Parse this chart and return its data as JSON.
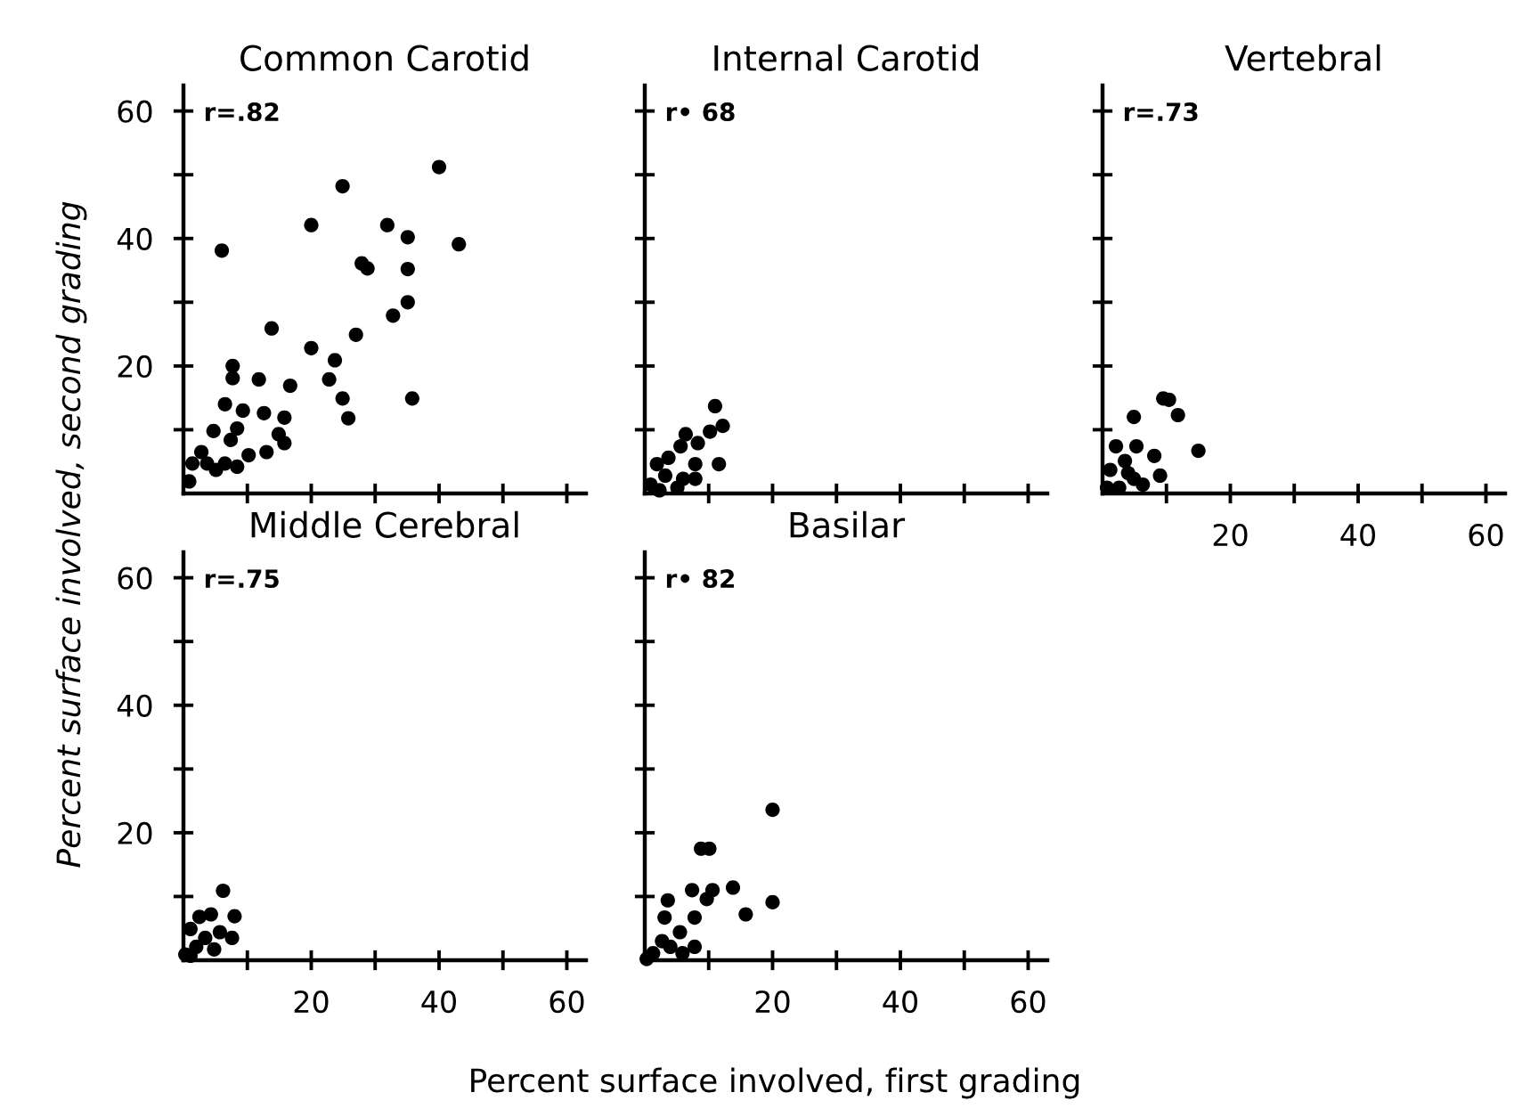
{
  "chart_data": [
    {
      "type": "scatter",
      "title": "Common Carotid",
      "ylabel": "Percent surface involved, second grading",
      "annotations": [
        "r=.82"
      ],
      "marker": "circle",
      "tick_labels": "y",
      "xlim": [
        0,
        63
      ],
      "ylim": [
        0,
        64
      ],
      "xticks": [
        {
          "value": 10,
          "label": null
        },
        20,
        {
          "value": 30,
          "label": null
        },
        40,
        {
          "value": 50,
          "label": null
        },
        60
      ],
      "yticks": [
        {
          "value": 10,
          "label": null
        },
        20,
        {
          "value": 30,
          "label": null
        },
        40,
        {
          "value": 50,
          "label": null
        },
        60
      ],
      "series": [
        {
          "color": "#000000",
          "x": [
            40,
            24.9,
            20,
            31.9,
            35.1,
            43.1,
            6,
            27.9,
            28.8,
            35.1,
            35.1,
            32.8,
            27,
            13.8,
            20,
            23.7,
            22.8,
            24.9,
            25.8,
            35.8,
            16.7,
            11.8,
            7.7,
            7.7,
            4.7,
            6.5,
            9.3,
            12.6,
            15.8,
            8.4,
            14.9,
            15.8,
            13,
            10.2,
            7.4,
            6.5,
            8.4,
            2.8,
            1.4,
            0.9,
            3.7,
            5.1
          ],
          "values": [
            51.2,
            48.2,
            42.1,
            42.1,
            40.2,
            39.1,
            38.1,
            36.1,
            35.3,
            35.2,
            30,
            27.9,
            24.9,
            25.9,
            22.8,
            20.9,
            17.9,
            14.9,
            11.8,
            14.9,
            16.9,
            17.9,
            20,
            18.1,
            9.8,
            14,
            13,
            12.6,
            11.9,
            10.2,
            9.3,
            7.9,
            6.5,
            6,
            8.4,
            4.7,
            4.2,
            6.5,
            4.7,
            1.9,
            4.7,
            3.7
          ]
        }
      ]
    },
    {
      "type": "scatter",
      "title": "Internal Carotid",
      "annotations": [
        "r• 68"
      ],
      "marker": "circle",
      "tick_labels": false,
      "xlim": [
        0,
        63
      ],
      "ylim": [
        0,
        64
      ],
      "xticks": [
        {
          "value": 10,
          "label": null
        },
        20,
        {
          "value": 30,
          "label": null
        },
        40,
        {
          "value": 50,
          "label": null
        },
        60
      ],
      "yticks": [
        {
          "value": 10,
          "label": null
        },
        20,
        {
          "value": 30,
          "label": null
        },
        40,
        {
          "value": 50,
          "label": null
        },
        60
      ],
      "series": [
        {
          "color": "#000000",
          "x": [
            11,
            12.2,
            10.2,
            8.3,
            6.4,
            5.6,
            11.6,
            7.9,
            3.7,
            1.9,
            3.2,
            6,
            0.9,
            2.3,
            7.9,
            5.1
          ],
          "values": [
            13.7,
            10.6,
            9.7,
            7.9,
            9.3,
            7.4,
            4.6,
            4.6,
            5.6,
            4.6,
            2.8,
            2.3,
            1.4,
            0.5,
            2.3,
            0.9
          ]
        }
      ]
    },
    {
      "type": "scatter",
      "title": "Vertebral",
      "annotations": [
        "r=.73"
      ],
      "marker": "circle",
      "tick_labels": "x",
      "xlim": [
        0,
        63
      ],
      "ylim": [
        0,
        64
      ],
      "xticks": [
        {
          "value": 10,
          "label": null
        },
        20,
        {
          "value": 30,
          "label": null
        },
        40,
        {
          "value": 50,
          "label": null
        },
        60
      ],
      "yticks": [
        {
          "value": 10,
          "label": null
        },
        20,
        {
          "value": 30,
          "label": null
        },
        40,
        {
          "value": 50,
          "label": null
        },
        60
      ],
      "series": [
        {
          "color": "#000000",
          "x": [
            9.5,
            10.4,
            4.9,
            15,
            9,
            11.8,
            8.1,
            5.3,
            2.1,
            3.5,
            1.2,
            4.9,
            2.6,
            0.7,
            6.3,
            4
          ],
          "values": [
            14.9,
            14.7,
            12,
            6.7,
            2.8,
            12.3,
            5.9,
            7.4,
            7.4,
            5.1,
            3.7,
            2.3,
            0.9,
            0.9,
            1.4,
            3.2
          ]
        }
      ]
    },
    {
      "type": "scatter",
      "title": "Middle Cerebral",
      "xlabel": "Percent surface involved, first grading",
      "annotations": [
        "r=.75"
      ],
      "marker": "circle",
      "xlim": [
        0,
        63
      ],
      "ylim": [
        0,
        64
      ],
      "xticks": [
        {
          "value": 10,
          "label": null
        },
        20,
        {
          "value": 30,
          "label": null
        },
        40,
        {
          "value": 50,
          "label": null
        },
        60
      ],
      "yticks": [
        {
          "value": 10,
          "label": null
        },
        20,
        {
          "value": 30,
          "label": null
        },
        40,
        {
          "value": 50,
          "label": null
        },
        60
      ],
      "series": [
        {
          "color": "#000000",
          "x": [
            6.2,
            8,
            4.3,
            2.5,
            7.6,
            5.7,
            1.1,
            3.4,
            2,
            0.3,
            4.8,
            1.1
          ],
          "values": [
            10.9,
            6.9,
            7.2,
            6.8,
            3.5,
            4.4,
            4.9,
            3.5,
            2.1,
            0.9,
            1.7,
            0.7
          ]
        }
      ]
    },
    {
      "type": "scatter",
      "title": "Basilar",
      "annotations": [
        "r• 82"
      ],
      "marker": "circle",
      "tick_labels": "x",
      "xlim": [
        0,
        63
      ],
      "ylim": [
        0,
        64
      ],
      "xticks": [
        {
          "value": 10,
          "label": null
        },
        20,
        {
          "value": 30,
          "label": null
        },
        40,
        {
          "value": 50,
          "label": null
        },
        60
      ],
      "yticks": [
        {
          "value": 10,
          "label": null
        },
        20,
        {
          "value": 30,
          "label": null
        },
        40,
        {
          "value": 50,
          "label": null
        },
        60
      ],
      "series": [
        {
          "color": "#000000",
          "x": [
            20,
            8.8,
            10.1,
            13.8,
            20,
            15.8,
            7.4,
            10.6,
            9.7,
            3.6,
            3.1,
            7.8,
            5.5,
            7.8,
            2.7,
            1.3,
            0.3,
            4,
            5.9
          ],
          "values": [
            23.6,
            17.5,
            17.5,
            11.4,
            9.1,
            7.2,
            11,
            11,
            9.6,
            9.4,
            6.7,
            6.7,
            4.4,
            2.1,
            3,
            1.1,
            0.2,
            2.1,
            1.1
          ]
        }
      ]
    }
  ]
}
